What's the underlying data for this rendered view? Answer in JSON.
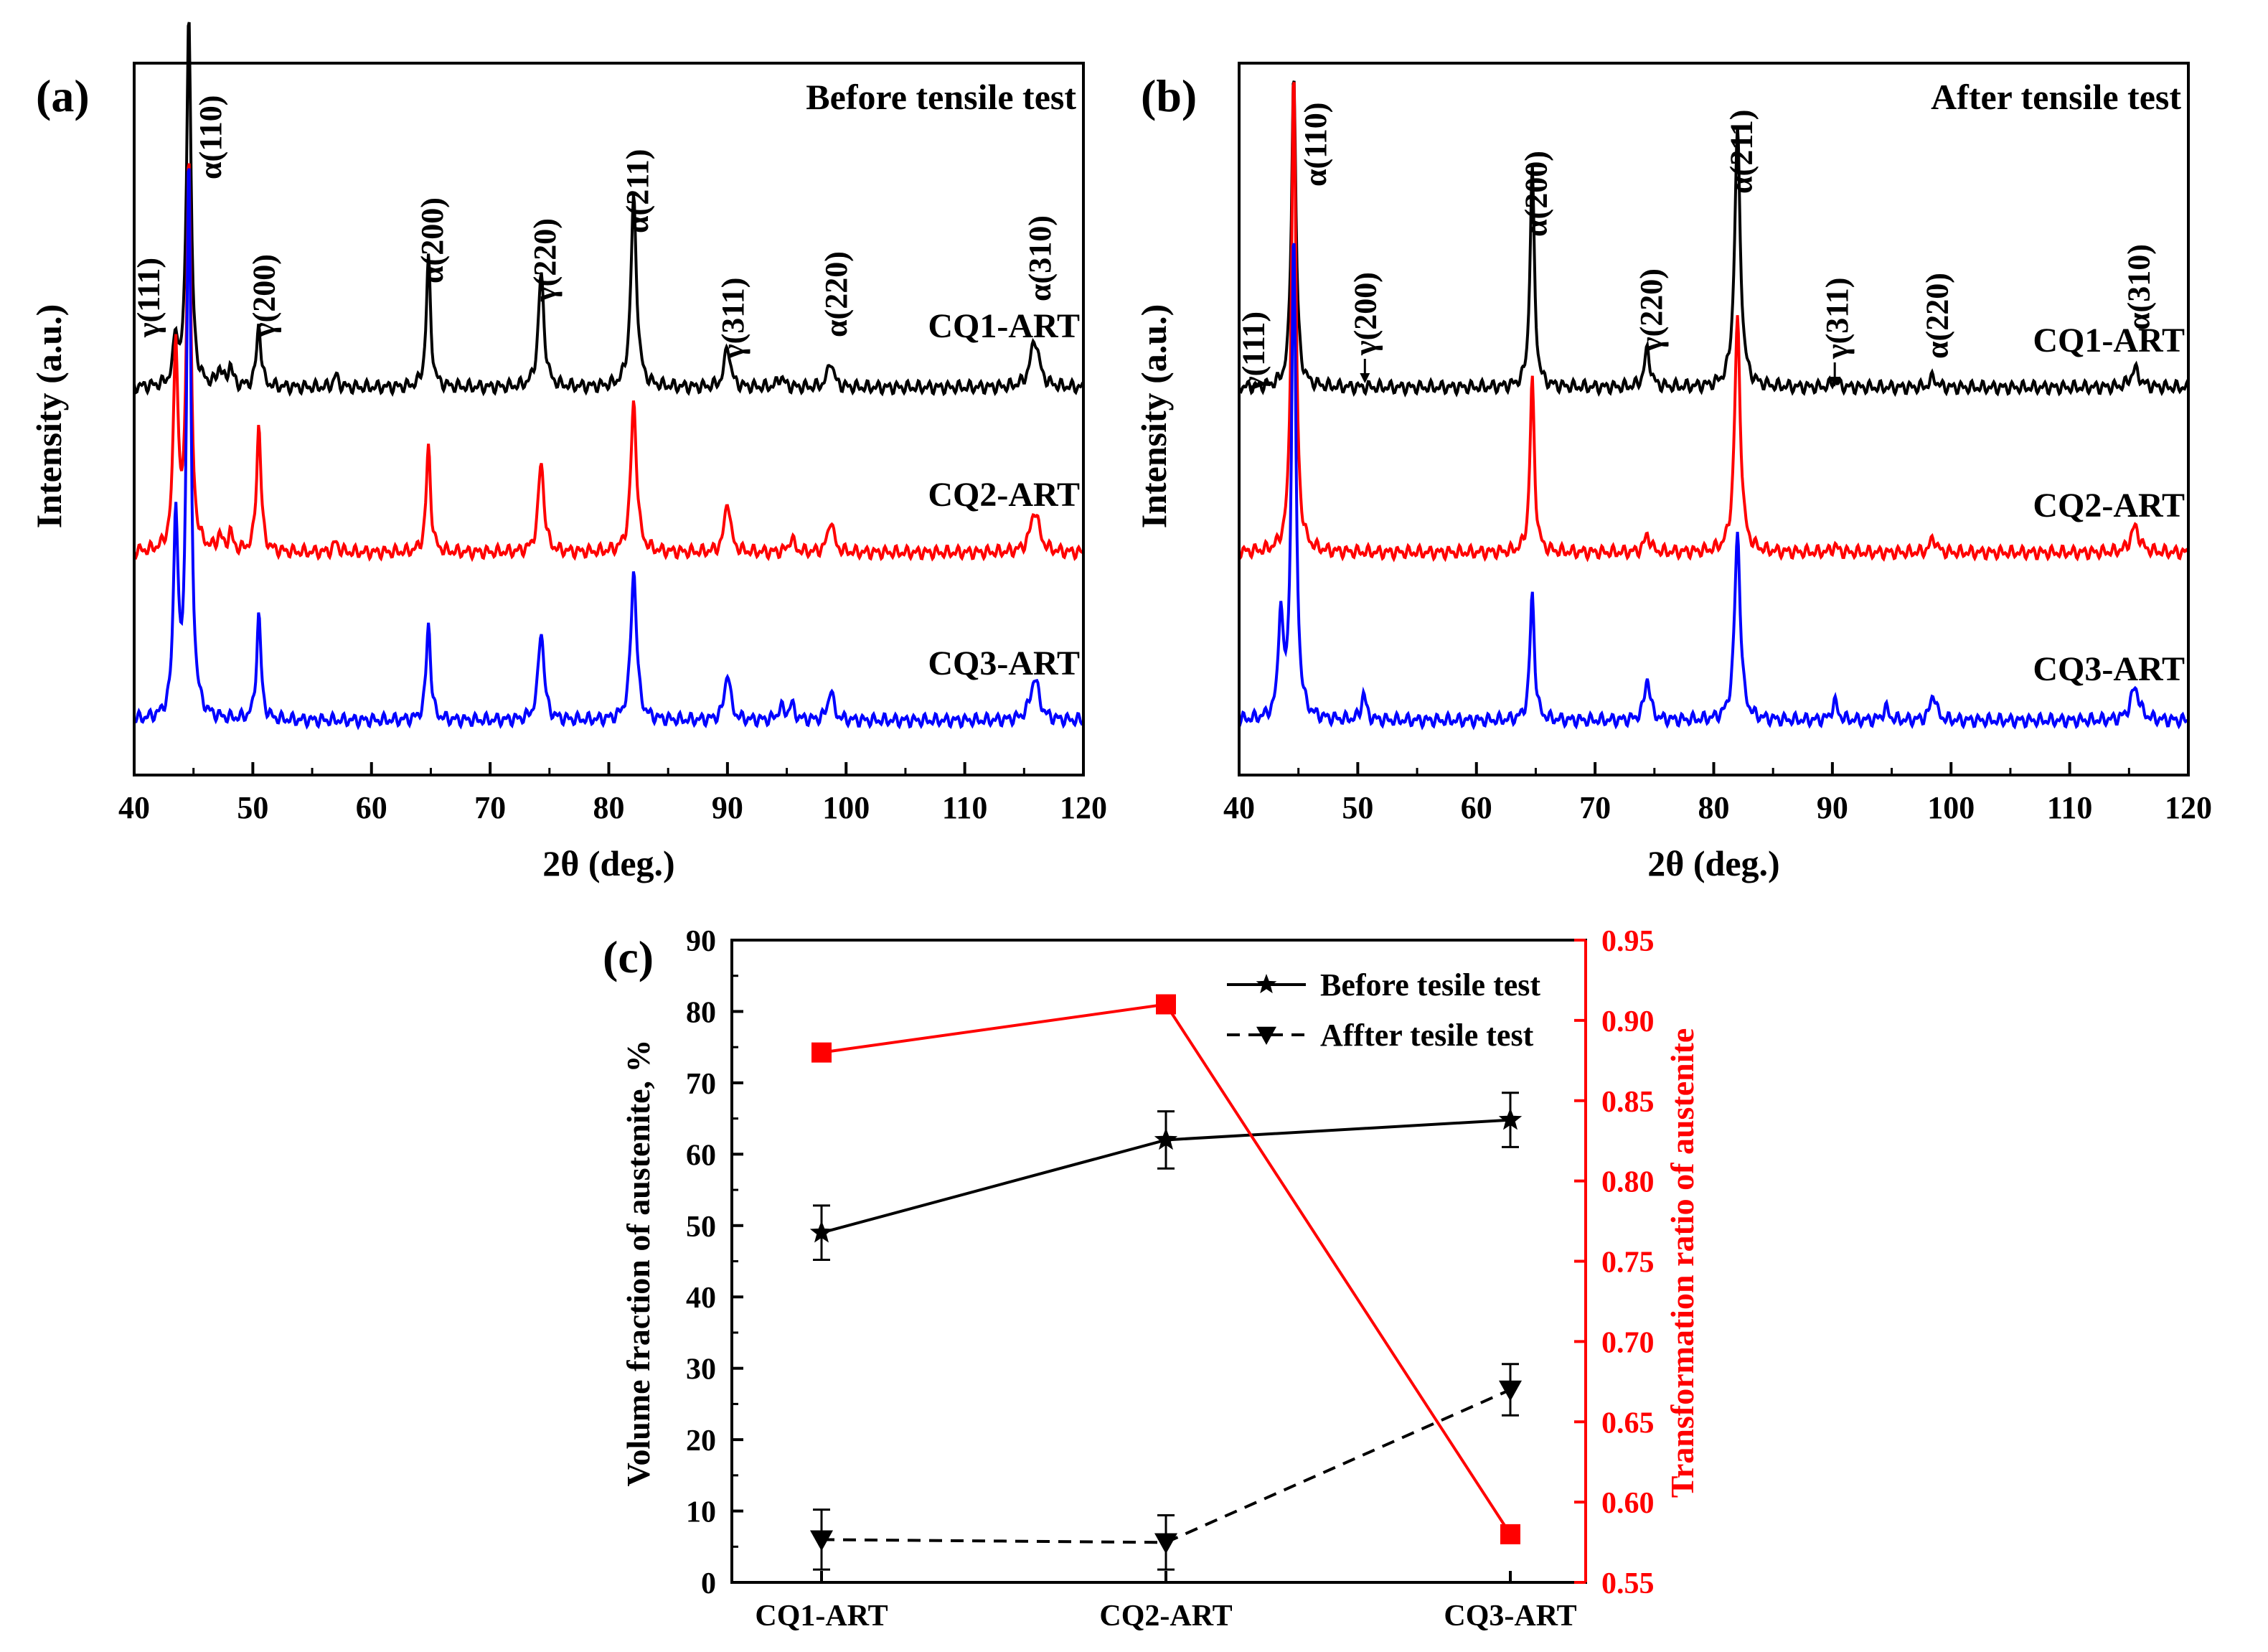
{
  "chart_data": [
    {
      "panel": "(a)",
      "type": "line",
      "title": "Before tensile test",
      "xlabel": "2θ (deg.)",
      "ylabel": "Intensity (a.u.)",
      "xlim": [
        40,
        120
      ],
      "xticks": [
        40,
        50,
        60,
        70,
        80,
        90,
        100,
        110,
        120
      ],
      "peaks": [
        {
          "label": "γ(111)",
          "x": 43.5
        },
        {
          "label": "α(110)",
          "x": 44.6
        },
        {
          "label": "γ(200)",
          "x": 50.5
        },
        {
          "label": "α(200)",
          "x": 64.8
        },
        {
          "label": "γ(220)",
          "x": 74.3
        },
        {
          "label": "α(211)",
          "x": 82.1
        },
        {
          "label": "γ(311)",
          "x": 90.0
        },
        {
          "label": "α(220)",
          "x": 98.7
        },
        {
          "label": "α(310)",
          "x": 115.9
        }
      ],
      "series": [
        {
          "name": "CQ1-ART",
          "color": "#000000",
          "peak_heights": {
            "43.5": 0.32,
            "44.6": 2.5,
            "50.5": 0.42,
            "64.8": 0.85,
            "74.3": 0.75,
            "82.1": 1.25,
            "90.0": 0.28,
            "98.7": 0.18,
            "115.9": 0.32,
            "47.2": 0.12,
            "48.1": 0.14,
            "57.0": 0.08,
            "94.5": 0.07
          }
        },
        {
          "name": "CQ2-ART",
          "color": "#ff0000",
          "peak_heights": {
            "43.5": 1.4,
            "44.6": 2.6,
            "50.5": 0.85,
            "64.8": 0.7,
            "74.3": 0.6,
            "82.1": 1.0,
            "90.0": 0.35,
            "98.7": 0.22,
            "115.9": 0.28,
            "47.2": 0.1,
            "48.1": 0.12,
            "57.0": 0.07,
            "95.4": 0.09
          }
        },
        {
          "name": "CQ3-ART",
          "color": "#0000ff",
          "peak_heights": {
            "43.5": 1.35,
            "44.6": 3.7,
            "50.5": 0.7,
            "64.8": 0.65,
            "74.3": 0.6,
            "82.1": 1.0,
            "90.0": 0.32,
            "98.7": 0.2,
            "115.9": 0.28,
            "94.5": 0.08,
            "95.4": 0.1
          }
        }
      ]
    },
    {
      "panel": "(b)",
      "type": "line",
      "title": "After tensile test",
      "xlabel": "2θ (deg.)",
      "ylabel": "Intensity (a.u.)",
      "xlim": [
        40,
        120
      ],
      "xticks": [
        40,
        50,
        60,
        70,
        80,
        90,
        100,
        110,
        120
      ],
      "peaks": [
        {
          "label": "γ(111)",
          "x": 43.5
        },
        {
          "label": "α(110)",
          "x": 44.6
        },
        {
          "label": "γ(200)",
          "x": 50.5
        },
        {
          "label": "α(200)",
          "x": 64.7
        },
        {
          "label": "γ(220)",
          "x": 74.4
        },
        {
          "label": "α(211)",
          "x": 82.0
        },
        {
          "label": "γ(311)",
          "x": 90.2
        },
        {
          "label": "α(220)",
          "x": 98.5
        },
        {
          "label": "α(310)",
          "x": 115.5
        }
      ],
      "series": [
        {
          "name": "CQ1-ART",
          "color": "#000000",
          "peak_heights": {
            "44.6": 2.1,
            "64.7": 1.45,
            "74.4": 0.25,
            "82.0": 1.7,
            "90.2": 0.05,
            "98.5": 0.07,
            "115.5": 0.12
          }
        },
        {
          "name": "CQ2-ART",
          "color": "#ff0000",
          "peak_heights": {
            "44.6": 3.2,
            "64.7": 1.15,
            "74.4": 0.12,
            "82.0": 1.55,
            "90.2": 0.04,
            "98.5": 0.1,
            "115.5": 0.17
          }
        },
        {
          "name": "CQ3-ART",
          "color": "#0000ff",
          "peak_heights": {
            "43.5": 0.7,
            "44.6": 3.2,
            "50.5": 0.18,
            "64.7": 0.85,
            "74.4": 0.28,
            "82.0": 1.25,
            "90.2": 0.12,
            "94.5": 0.08,
            "98.5": 0.18,
            "115.5": 0.22
          }
        }
      ],
      "annotations": [
        "γ(200)",
        "γ(311)"
      ]
    },
    {
      "panel": "(c)",
      "type": "line",
      "categories": [
        "CQ1-ART",
        "CQ2-ART",
        "CQ3-ART"
      ],
      "ylabel": "Volume fraction of austenite, %",
      "ylim": [
        0,
        90
      ],
      "yticks": [
        0,
        10,
        20,
        30,
        40,
        50,
        60,
        70,
        80,
        90
      ],
      "y2label": "Transformation ratio of austenite",
      "y2lim": [
        0.55,
        0.95
      ],
      "y2ticks": [
        "0.55",
        "0.60",
        "0.65",
        "0.70",
        "0.75",
        "0.80",
        "0.85",
        "0.90",
        "0.95"
      ],
      "series": [
        {
          "name": "Before tesile test",
          "axis": "left",
          "marker": "star",
          "dash": "solid",
          "color": "#000000",
          "values": [
            49,
            62,
            64.8
          ],
          "errors": [
            3.8,
            4.0,
            3.8
          ]
        },
        {
          "name": "Affter tesile test",
          "axis": "left",
          "marker": "triangle-down",
          "dash": "dashed",
          "color": "#000000",
          "values": [
            6,
            5.6,
            27
          ],
          "errors": [
            4.2,
            3.8,
            3.6
          ]
        },
        {
          "name": "Transformation ratio",
          "axis": "right",
          "marker": "square",
          "dash": "solid",
          "color": "#ff0000",
          "values": [
            0.88,
            0.91,
            0.58
          ],
          "in_legend": false
        }
      ],
      "legend_position": "top-right"
    }
  ]
}
